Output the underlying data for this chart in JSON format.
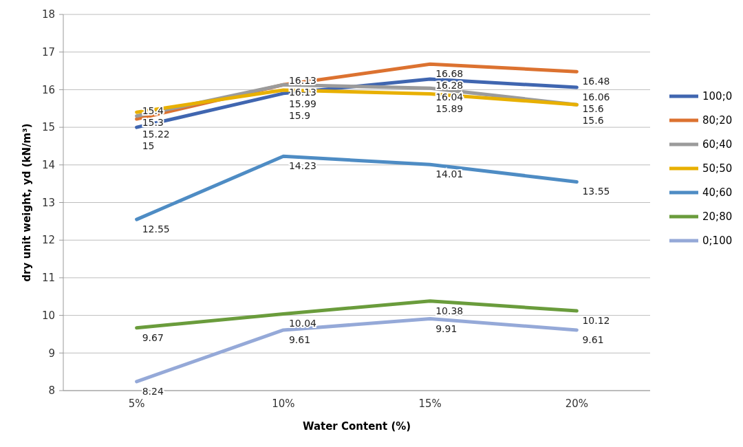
{
  "chart_data": {
    "type": "line",
    "xlabel": "Water Content (%)",
    "ylabel": "dry unit weight, yd  (kN/m³)",
    "categories": [
      "5%",
      "10%",
      "15%",
      "20%"
    ],
    "ylim": [
      8,
      18
    ],
    "yticks": [
      8,
      9,
      10,
      11,
      12,
      13,
      14,
      15,
      16,
      17,
      18
    ],
    "grid": "y",
    "legend": "right",
    "data_labels": true,
    "marker": "none",
    "line_style": "solid",
    "series": [
      {
        "name": "100;0",
        "color": "#4066b0",
        "values": [
          15,
          15.9,
          16.28,
          16.06
        ]
      },
      {
        "name": "80;20",
        "color": "#dc7230",
        "values": [
          15.22,
          16.13,
          16.68,
          16.48
        ]
      },
      {
        "name": "60;40",
        "color": "#9b9b9b",
        "values": [
          15.3,
          16.13,
          16.04,
          15.6
        ]
      },
      {
        "name": "50;50",
        "color": "#e8b000",
        "values": [
          15.4,
          15.99,
          15.89,
          15.6
        ]
      },
      {
        "name": "40;60",
        "color": "#4e8cc4",
        "values": [
          12.55,
          14.23,
          14.01,
          13.55
        ]
      },
      {
        "name": "20;80",
        "color": "#6a9c3c",
        "values": [
          9.67,
          10.04,
          10.38,
          10.12
        ]
      },
      {
        "name": "0;100",
        "color": "#95a9d8",
        "values": [
          8.24,
          9.61,
          9.91,
          9.61
        ]
      }
    ]
  }
}
